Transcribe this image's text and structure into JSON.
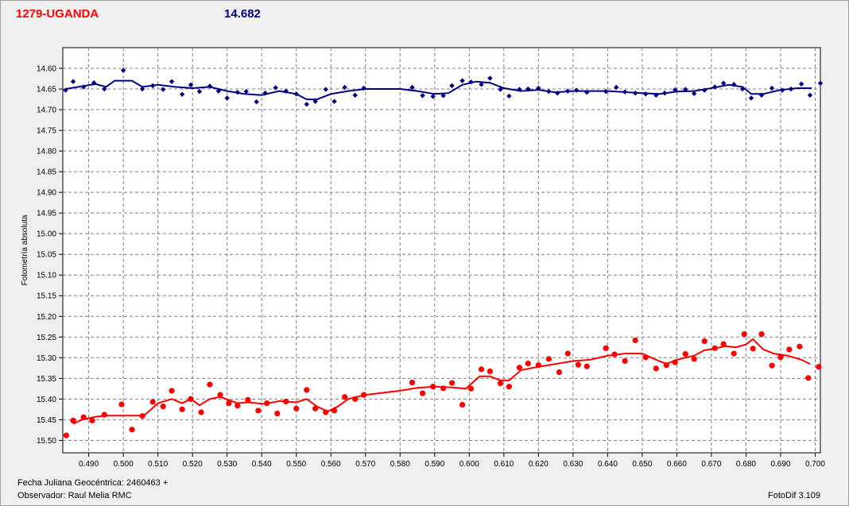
{
  "header": {
    "object_name": "1279-UGANDA",
    "mean_magnitude": "14.682"
  },
  "footer": {
    "jd_label": "Fecha Juliana Geocéntrica: 2460463 +",
    "observer_label": "Observador: Raul Melia RMC",
    "software_label": "FotoDif 3.109"
  },
  "colors": {
    "comparison_series": "#000080",
    "target_series": "#ff0000",
    "grid": "#808080"
  },
  "chart_data": {
    "type": "scatter",
    "title": "1279-UGANDA",
    "xlabel": "",
    "ylabel": "Fotometría absoluta",
    "xlim": [
      0.4825,
      0.7015
    ],
    "ylim": [
      14.55,
      15.53
    ],
    "y_inverted": true,
    "grid": true,
    "x_ticks": [
      "0.490",
      "0.500",
      "0.510",
      "0.520",
      "0.530",
      "0.540",
      "0.550",
      "0.560",
      "0.570",
      "0.580",
      "0.590",
      "0.600",
      "0.610",
      "0.620",
      "0.630",
      "0.640",
      "0.650",
      "0.660",
      "0.670",
      "0.680",
      "0.690",
      "0.700"
    ],
    "y_ticks": [
      "14.60",
      "14.65",
      "14.70",
      "14.75",
      "14.80",
      "14.85",
      "14.90",
      "14.95",
      "15.00",
      "15.05",
      "15.10",
      "15.15",
      "15.20",
      "15.25",
      "15.30",
      "15.35",
      "15.40",
      "15.45",
      "15.50"
    ],
    "series": [
      {
        "color": "#000080",
        "marker": "diamond",
        "points": [
          [
            0.4833,
            14.653
          ],
          [
            0.4855,
            14.632
          ],
          [
            0.4885,
            14.645
          ],
          [
            0.4915,
            14.635
          ],
          [
            0.4945,
            14.65
          ],
          [
            0.5,
            14.605
          ],
          [
            0.5055,
            14.65
          ],
          [
            0.5085,
            14.642
          ],
          [
            0.5115,
            14.651
          ],
          [
            0.514,
            14.632
          ],
          [
            0.517,
            14.663
          ],
          [
            0.5195,
            14.64
          ],
          [
            0.522,
            14.656
          ],
          [
            0.525,
            14.643
          ],
          [
            0.5275,
            14.655
          ],
          [
            0.53,
            14.672
          ],
          [
            0.533,
            14.658
          ],
          [
            0.5355,
            14.656
          ],
          [
            0.5385,
            14.681
          ],
          [
            0.541,
            14.66
          ],
          [
            0.544,
            14.647
          ],
          [
            0.547,
            14.655
          ],
          [
            0.55,
            14.662
          ],
          [
            0.553,
            14.687
          ],
          [
            0.5555,
            14.68
          ],
          [
            0.5585,
            14.651
          ],
          [
            0.561,
            14.68
          ],
          [
            0.564,
            14.646
          ],
          [
            0.567,
            14.665
          ],
          [
            0.5695,
            14.648
          ],
          [
            0.5835,
            14.646
          ],
          [
            0.5865,
            14.666
          ],
          [
            0.5895,
            14.668
          ],
          [
            0.5925,
            14.666
          ],
          [
            0.595,
            14.642
          ],
          [
            0.598,
            14.63
          ],
          [
            0.6005,
            14.633
          ],
          [
            0.6035,
            14.639
          ],
          [
            0.606,
            14.624
          ],
          [
            0.609,
            14.651
          ],
          [
            0.6115,
            14.667
          ],
          [
            0.6145,
            14.651
          ],
          [
            0.617,
            14.65
          ],
          [
            0.62,
            14.648
          ],
          [
            0.623,
            14.656
          ],
          [
            0.6255,
            14.66
          ],
          [
            0.6285,
            14.655
          ],
          [
            0.631,
            14.653
          ],
          [
            0.634,
            14.658
          ],
          [
            0.6395,
            14.656
          ],
          [
            0.6425,
            14.646
          ],
          [
            0.645,
            14.657
          ],
          [
            0.648,
            14.66
          ],
          [
            0.651,
            14.662
          ],
          [
            0.654,
            14.665
          ],
          [
            0.6565,
            14.66
          ],
          [
            0.6595,
            14.652
          ],
          [
            0.6625,
            14.651
          ],
          [
            0.665,
            14.661
          ],
          [
            0.668,
            14.653
          ],
          [
            0.671,
            14.645
          ],
          [
            0.6735,
            14.636
          ],
          [
            0.6765,
            14.639
          ],
          [
            0.679,
            14.65
          ],
          [
            0.6815,
            14.672
          ],
          [
            0.6845,
            14.665
          ],
          [
            0.6875,
            14.648
          ],
          [
            0.6905,
            14.653
          ],
          [
            0.693,
            14.65
          ],
          [
            0.696,
            14.638
          ],
          [
            0.6985,
            14.665
          ],
          [
            0.7015,
            14.636
          ]
        ],
        "trend": [
          [
            0.4833,
            14.65
          ],
          [
            0.487,
            14.645
          ],
          [
            0.492,
            14.638
          ],
          [
            0.495,
            14.645
          ],
          [
            0.4975,
            14.63
          ],
          [
            0.5025,
            14.63
          ],
          [
            0.5055,
            14.645
          ],
          [
            0.51,
            14.64
          ],
          [
            0.515,
            14.645
          ],
          [
            0.52,
            14.648
          ],
          [
            0.525,
            14.645
          ],
          [
            0.53,
            14.655
          ],
          [
            0.535,
            14.662
          ],
          [
            0.54,
            14.665
          ],
          [
            0.545,
            14.655
          ],
          [
            0.55,
            14.662
          ],
          [
            0.553,
            14.675
          ],
          [
            0.556,
            14.675
          ],
          [
            0.56,
            14.662
          ],
          [
            0.565,
            14.655
          ],
          [
            0.57,
            14.65
          ],
          [
            0.58,
            14.65
          ],
          [
            0.585,
            14.655
          ],
          [
            0.59,
            14.662
          ],
          [
            0.594,
            14.66
          ],
          [
            0.598,
            14.64
          ],
          [
            0.602,
            14.632
          ],
          [
            0.606,
            14.635
          ],
          [
            0.61,
            14.648
          ],
          [
            0.615,
            14.655
          ],
          [
            0.62,
            14.652
          ],
          [
            0.625,
            14.658
          ],
          [
            0.63,
            14.655
          ],
          [
            0.64,
            14.655
          ],
          [
            0.65,
            14.66
          ],
          [
            0.655,
            14.662
          ],
          [
            0.66,
            14.656
          ],
          [
            0.665,
            14.655
          ],
          [
            0.67,
            14.648
          ],
          [
            0.675,
            14.64
          ],
          [
            0.679,
            14.645
          ],
          [
            0.6815,
            14.662
          ],
          [
            0.685,
            14.662
          ],
          [
            0.69,
            14.652
          ],
          [
            0.695,
            14.648
          ],
          [
            0.699,
            14.648
          ]
        ]
      },
      {
        "color": "#ff0000",
        "marker": "dot",
        "points": [
          [
            0.4835,
            15.488
          ],
          [
            0.4855,
            15.452
          ],
          [
            0.4885,
            15.444
          ],
          [
            0.491,
            15.452
          ],
          [
            0.4945,
            15.438
          ],
          [
            0.4995,
            15.413
          ],
          [
            0.5025,
            15.474
          ],
          [
            0.5055,
            15.441
          ],
          [
            0.5085,
            15.407
          ],
          [
            0.5115,
            15.418
          ],
          [
            0.514,
            15.38
          ],
          [
            0.517,
            15.425
          ],
          [
            0.5195,
            15.4
          ],
          [
            0.5225,
            15.432
          ],
          [
            0.525,
            15.365
          ],
          [
            0.528,
            15.39
          ],
          [
            0.5305,
            15.41
          ],
          [
            0.533,
            15.416
          ],
          [
            0.536,
            15.402
          ],
          [
            0.539,
            15.428
          ],
          [
            0.5415,
            15.41
          ],
          [
            0.5445,
            15.435
          ],
          [
            0.547,
            15.406
          ],
          [
            0.55,
            15.423
          ],
          [
            0.553,
            15.378
          ],
          [
            0.5555,
            15.423
          ],
          [
            0.5585,
            15.432
          ],
          [
            0.561,
            15.428
          ],
          [
            0.564,
            15.395
          ],
          [
            0.567,
            15.4
          ],
          [
            0.5695,
            15.39
          ],
          [
            0.5835,
            15.36
          ],
          [
            0.5865,
            15.386
          ],
          [
            0.5895,
            15.37
          ],
          [
            0.5925,
            15.374
          ],
          [
            0.595,
            15.361
          ],
          [
            0.598,
            15.414
          ],
          [
            0.6005,
            15.375
          ],
          [
            0.6035,
            15.328
          ],
          [
            0.606,
            15.333
          ],
          [
            0.609,
            15.362
          ],
          [
            0.6115,
            15.37
          ],
          [
            0.6145,
            15.324
          ],
          [
            0.617,
            15.314
          ],
          [
            0.62,
            15.318
          ],
          [
            0.623,
            15.303
          ],
          [
            0.626,
            15.335
          ],
          [
            0.6285,
            15.29
          ],
          [
            0.6315,
            15.317
          ],
          [
            0.634,
            15.321
          ],
          [
            0.6395,
            15.277
          ],
          [
            0.642,
            15.292
          ],
          [
            0.645,
            15.308
          ],
          [
            0.648,
            15.258
          ],
          [
            0.651,
            15.299
          ],
          [
            0.654,
            15.326
          ],
          [
            0.657,
            15.318
          ],
          [
            0.6595,
            15.311
          ],
          [
            0.6625,
            15.291
          ],
          [
            0.665,
            15.303
          ],
          [
            0.668,
            15.26
          ],
          [
            0.671,
            15.277
          ],
          [
            0.6735,
            15.267
          ],
          [
            0.6765,
            15.29
          ],
          [
            0.6795,
            15.243
          ],
          [
            0.682,
            15.278
          ],
          [
            0.6845,
            15.243
          ],
          [
            0.6875,
            15.319
          ],
          [
            0.69,
            15.299
          ],
          [
            0.6925,
            15.28
          ],
          [
            0.6955,
            15.273
          ],
          [
            0.698,
            15.349
          ],
          [
            0.701,
            15.322
          ]
        ],
        "trend": [
          [
            0.4855,
            15.46
          ],
          [
            0.488,
            15.45
          ],
          [
            0.492,
            15.443
          ],
          [
            0.495,
            15.44
          ],
          [
            0.501,
            15.44
          ],
          [
            0.506,
            15.44
          ],
          [
            0.51,
            15.41
          ],
          [
            0.514,
            15.4
          ],
          [
            0.517,
            15.41
          ],
          [
            0.5195,
            15.4
          ],
          [
            0.522,
            15.415
          ],
          [
            0.525,
            15.4
          ],
          [
            0.528,
            15.395
          ],
          [
            0.533,
            15.41
          ],
          [
            0.536,
            15.408
          ],
          [
            0.541,
            15.412
          ],
          [
            0.545,
            15.405
          ],
          [
            0.55,
            15.408
          ],
          [
            0.553,
            15.4
          ],
          [
            0.556,
            15.418
          ],
          [
            0.559,
            15.43
          ],
          [
            0.562,
            15.418
          ],
          [
            0.565,
            15.4
          ],
          [
            0.57,
            15.39
          ],
          [
            0.58,
            15.38
          ],
          [
            0.585,
            15.373
          ],
          [
            0.59,
            15.37
          ],
          [
            0.595,
            15.372
          ],
          [
            0.599,
            15.375
          ],
          [
            0.603,
            15.345
          ],
          [
            0.606,
            15.345
          ],
          [
            0.609,
            15.355
          ],
          [
            0.6115,
            15.355
          ],
          [
            0.615,
            15.33
          ],
          [
            0.62,
            15.322
          ],
          [
            0.625,
            15.315
          ],
          [
            0.63,
            15.308
          ],
          [
            0.635,
            15.305
          ],
          [
            0.64,
            15.295
          ],
          [
            0.645,
            15.29
          ],
          [
            0.65,
            15.29
          ],
          [
            0.654,
            15.305
          ],
          [
            0.657,
            15.315
          ],
          [
            0.66,
            15.305
          ],
          [
            0.665,
            15.295
          ],
          [
            0.668,
            15.282
          ],
          [
            0.671,
            15.278
          ],
          [
            0.674,
            15.272
          ],
          [
            0.677,
            15.275
          ],
          [
            0.68,
            15.268
          ],
          [
            0.682,
            15.255
          ],
          [
            0.685,
            15.28
          ],
          [
            0.688,
            15.29
          ],
          [
            0.692,
            15.295
          ],
          [
            0.696,
            15.305
          ],
          [
            0.6985,
            15.315
          ]
        ]
      }
    ]
  }
}
